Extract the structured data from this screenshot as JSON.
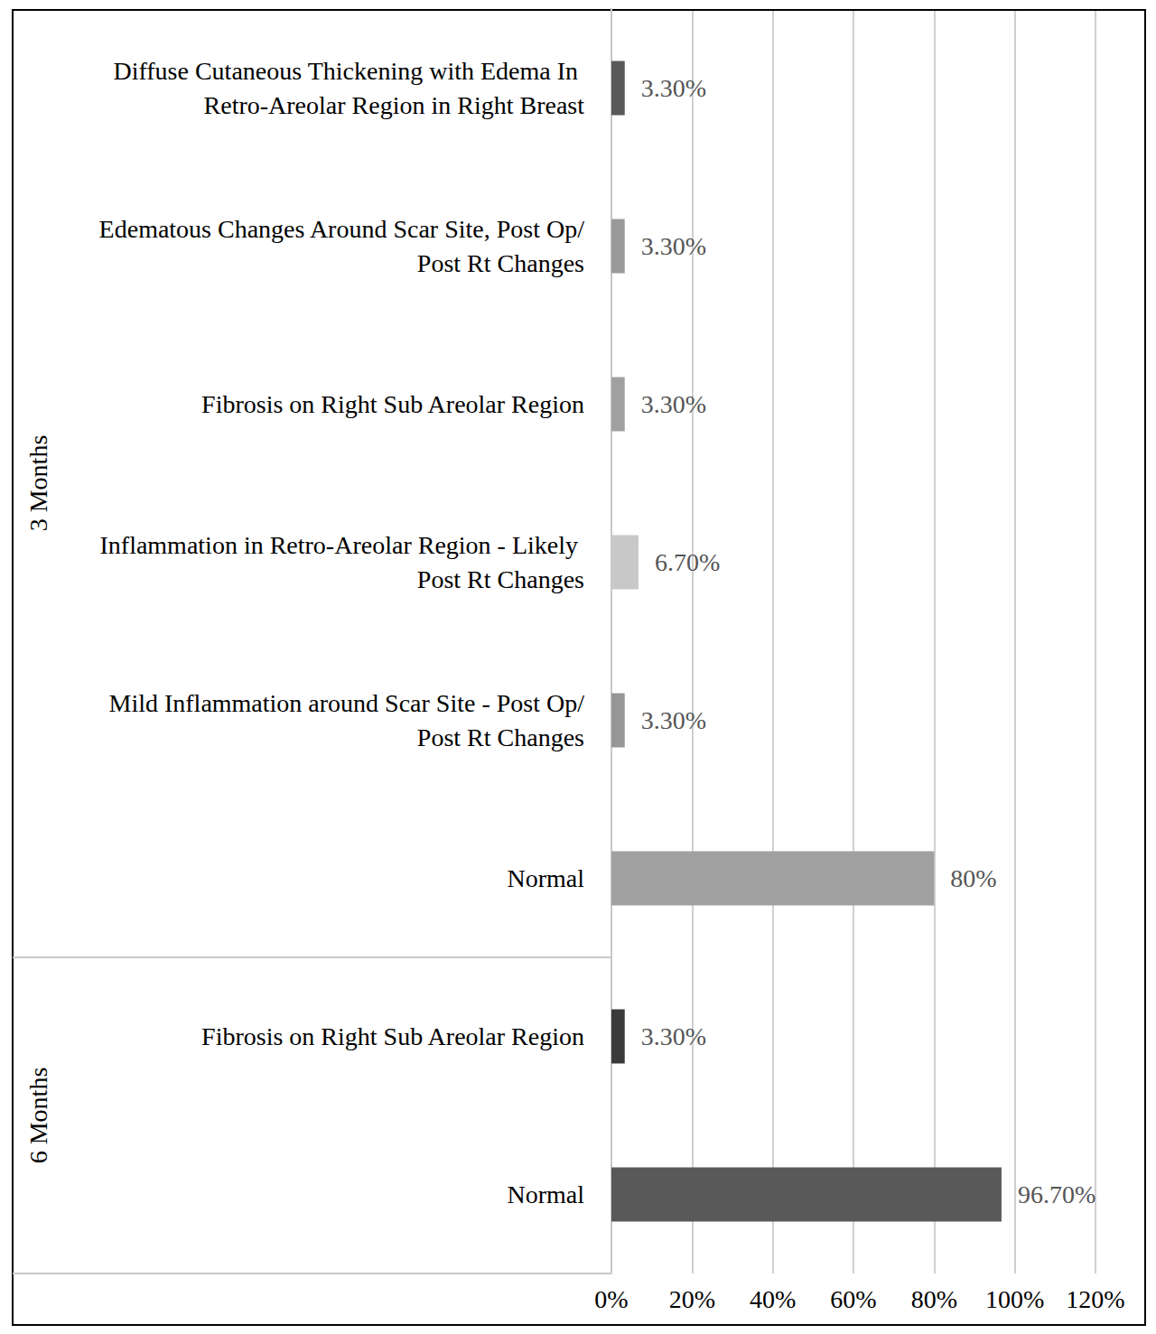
{
  "chart_data": {
    "type": "bar",
    "orientation": "horizontal",
    "categories": [
      "Diffuse Cutaneous Thickening with Edema In Retro-Areolar Region in Right Breast",
      "Edematous Changes Around Scar Site, Post Op/Post Rt Changes",
      "Fibrosis on Right Sub Areolar Region",
      "Inflammation in Retro-Areolar Region - Likely Post Rt Changes",
      "Mild Inflammation around Scar Site - Post Op/Post Rt Changes",
      "Normal",
      "Fibrosis on Right Sub Areolar Region",
      "Normal"
    ],
    "group": [
      "3 Months",
      "3 Months",
      "3 Months",
      "3 Months",
      "3 Months",
      "3 Months",
      "6 Months",
      "6 Months"
    ],
    "values": [
      3.3,
      3.3,
      3.3,
      6.7,
      3.3,
      80,
      3.3,
      96.7
    ],
    "value_labels": [
      "3.30%",
      "3.30%",
      "3.30%",
      "6.70%",
      "3.30%",
      "80%",
      "3.30%",
      "96.70%"
    ],
    "colors": [
      "#595959",
      "#9a9a9a",
      "#a0a0a0",
      "#c8c8c8",
      "#969696",
      "#a0a0a0",
      "#3a3a3a",
      "#595959"
    ],
    "xlim": [
      0,
      120
    ],
    "xticks": [
      {
        "value": 0,
        "label": "0%"
      },
      {
        "value": 20,
        "label": "20%"
      },
      {
        "value": 40,
        "label": "40%"
      },
      {
        "value": 60,
        "label": "60%"
      },
      {
        "value": 80,
        "label": "80%"
      },
      {
        "value": 100,
        "label": "100%"
      },
      {
        "value": 120,
        "label": "120%"
      }
    ],
    "grid": true,
    "data_labels": true
  }
}
